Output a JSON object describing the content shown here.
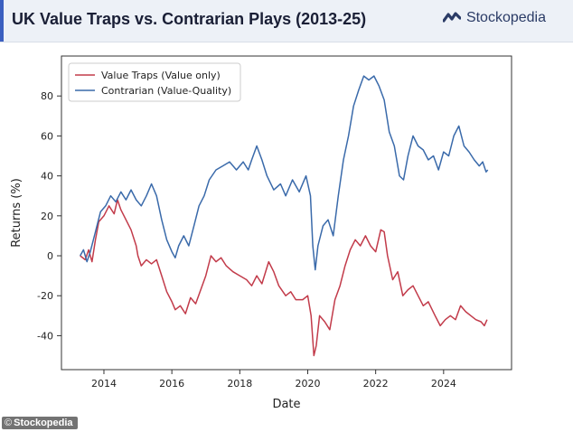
{
  "header": {
    "title": "UK Value Traps vs. Contrarian Plays (2013-25)",
    "brand": "Stockopedia"
  },
  "footer": {
    "credit_symbol": "©",
    "credit": "Stockopedia"
  },
  "colors": {
    "value_traps": "#c23b4a",
    "contrarian": "#3a6aaa",
    "brand": "#2a3b66",
    "header_bg": "#edf1f7"
  },
  "icons": {
    "brand": "stockopedia-logo-icon"
  },
  "chart_data": {
    "type": "line",
    "xlabel": "Date",
    "ylabel": "Returns (%)",
    "xlim": [
      2012.75,
      2026.0
    ],
    "ylim": [
      -57,
      100
    ],
    "x_ticks": [
      2014,
      2016,
      2018,
      2020,
      2022,
      2024
    ],
    "y_ticks": [
      -40,
      -20,
      0,
      20,
      40,
      60,
      80
    ],
    "grid": false,
    "legend_position": "top-left",
    "series": [
      {
        "name": "Value Traps (Value only)",
        "color": "#c23b4a",
        "points": [
          [
            2013.3,
            0
          ],
          [
            2013.45,
            -2
          ],
          [
            2013.55,
            3
          ],
          [
            2013.65,
            -3
          ],
          [
            2013.75,
            8
          ],
          [
            2013.85,
            17
          ],
          [
            2014.0,
            20
          ],
          [
            2014.15,
            25
          ],
          [
            2014.3,
            21
          ],
          [
            2014.4,
            28
          ],
          [
            2014.5,
            23
          ],
          [
            2014.65,
            18
          ],
          [
            2014.8,
            13
          ],
          [
            2014.95,
            5
          ],
          [
            2015.0,
            0
          ],
          [
            2015.1,
            -5
          ],
          [
            2015.25,
            -2
          ],
          [
            2015.4,
            -4
          ],
          [
            2015.55,
            -2
          ],
          [
            2015.7,
            -10
          ],
          [
            2015.85,
            -18
          ],
          [
            2016.0,
            -23
          ],
          [
            2016.1,
            -27
          ],
          [
            2016.25,
            -25
          ],
          [
            2016.4,
            -29
          ],
          [
            2016.55,
            -21
          ],
          [
            2016.7,
            -24
          ],
          [
            2016.85,
            -17
          ],
          [
            2017.0,
            -10
          ],
          [
            2017.15,
            0
          ],
          [
            2017.3,
            -3
          ],
          [
            2017.45,
            -1
          ],
          [
            2017.6,
            -5
          ],
          [
            2017.8,
            -8
          ],
          [
            2018.0,
            -10
          ],
          [
            2018.2,
            -12
          ],
          [
            2018.35,
            -15
          ],
          [
            2018.5,
            -10
          ],
          [
            2018.65,
            -14
          ],
          [
            2018.85,
            -3
          ],
          [
            2019.0,
            -8
          ],
          [
            2019.15,
            -15
          ],
          [
            2019.35,
            -20
          ],
          [
            2019.5,
            -18
          ],
          [
            2019.65,
            -22
          ],
          [
            2019.85,
            -22
          ],
          [
            2020.0,
            -20
          ],
          [
            2020.1,
            -30
          ],
          [
            2020.18,
            -50
          ],
          [
            2020.25,
            -45
          ],
          [
            2020.35,
            -30
          ],
          [
            2020.5,
            -33
          ],
          [
            2020.65,
            -37
          ],
          [
            2020.8,
            -22
          ],
          [
            2020.95,
            -15
          ],
          [
            2021.1,
            -5
          ],
          [
            2021.25,
            3
          ],
          [
            2021.4,
            8
          ],
          [
            2021.55,
            5
          ],
          [
            2021.7,
            10
          ],
          [
            2021.85,
            5
          ],
          [
            2022.0,
            2
          ],
          [
            2022.15,
            13
          ],
          [
            2022.25,
            12
          ],
          [
            2022.35,
            0
          ],
          [
            2022.5,
            -12
          ],
          [
            2022.65,
            -8
          ],
          [
            2022.8,
            -20
          ],
          [
            2022.95,
            -17
          ],
          [
            2023.1,
            -15
          ],
          [
            2023.25,
            -20
          ],
          [
            2023.4,
            -25
          ],
          [
            2023.55,
            -23
          ],
          [
            2023.75,
            -30
          ],
          [
            2023.9,
            -35
          ],
          [
            2024.05,
            -32
          ],
          [
            2024.2,
            -30
          ],
          [
            2024.35,
            -32
          ],
          [
            2024.5,
            -25
          ],
          [
            2024.65,
            -28
          ],
          [
            2024.8,
            -30
          ],
          [
            2024.95,
            -32
          ],
          [
            2025.1,
            -33
          ],
          [
            2025.2,
            -35
          ],
          [
            2025.28,
            -32
          ]
        ]
      },
      {
        "name": "Contrarian (Value-Quality)",
        "color": "#3a6aaa",
        "points": [
          [
            2013.3,
            0
          ],
          [
            2013.4,
            3
          ],
          [
            2013.5,
            -3
          ],
          [
            2013.6,
            2
          ],
          [
            2013.75,
            12
          ],
          [
            2013.9,
            22
          ],
          [
            2014.05,
            25
          ],
          [
            2014.2,
            30
          ],
          [
            2014.35,
            27
          ],
          [
            2014.5,
            32
          ],
          [
            2014.65,
            28
          ],
          [
            2014.8,
            33
          ],
          [
            2014.95,
            28
          ],
          [
            2015.1,
            25
          ],
          [
            2015.25,
            30
          ],
          [
            2015.4,
            36
          ],
          [
            2015.55,
            30
          ],
          [
            2015.7,
            18
          ],
          [
            2015.85,
            8
          ],
          [
            2016.0,
            2
          ],
          [
            2016.1,
            -1
          ],
          [
            2016.2,
            5
          ],
          [
            2016.35,
            10
          ],
          [
            2016.5,
            5
          ],
          [
            2016.65,
            15
          ],
          [
            2016.8,
            25
          ],
          [
            2016.95,
            30
          ],
          [
            2017.1,
            38
          ],
          [
            2017.3,
            43
          ],
          [
            2017.5,
            45
          ],
          [
            2017.7,
            47
          ],
          [
            2017.9,
            43
          ],
          [
            2018.1,
            47
          ],
          [
            2018.25,
            43
          ],
          [
            2018.35,
            48
          ],
          [
            2018.5,
            55
          ],
          [
            2018.65,
            48
          ],
          [
            2018.8,
            40
          ],
          [
            2019.0,
            33
          ],
          [
            2019.2,
            36
          ],
          [
            2019.35,
            30
          ],
          [
            2019.55,
            38
          ],
          [
            2019.75,
            32
          ],
          [
            2019.95,
            40
          ],
          [
            2020.08,
            30
          ],
          [
            2020.15,
            5
          ],
          [
            2020.22,
            -7
          ],
          [
            2020.3,
            5
          ],
          [
            2020.45,
            15
          ],
          [
            2020.6,
            18
          ],
          [
            2020.75,
            10
          ],
          [
            2020.9,
            30
          ],
          [
            2021.05,
            48
          ],
          [
            2021.2,
            60
          ],
          [
            2021.35,
            75
          ],
          [
            2021.5,
            83
          ],
          [
            2021.65,
            90
          ],
          [
            2021.8,
            88
          ],
          [
            2021.95,
            90
          ],
          [
            2022.1,
            85
          ],
          [
            2022.25,
            78
          ],
          [
            2022.4,
            62
          ],
          [
            2022.55,
            55
          ],
          [
            2022.7,
            40
          ],
          [
            2022.82,
            38
          ],
          [
            2022.95,
            50
          ],
          [
            2023.1,
            60
          ],
          [
            2023.25,
            55
          ],
          [
            2023.4,
            53
          ],
          [
            2023.55,
            48
          ],
          [
            2023.7,
            50
          ],
          [
            2023.85,
            43
          ],
          [
            2024.0,
            52
          ],
          [
            2024.15,
            50
          ],
          [
            2024.3,
            60
          ],
          [
            2024.45,
            65
          ],
          [
            2024.6,
            55
          ],
          [
            2024.75,
            52
          ],
          [
            2024.9,
            48
          ],
          [
            2025.05,
            45
          ],
          [
            2025.15,
            47
          ],
          [
            2025.25,
            42
          ],
          [
            2025.3,
            43
          ]
        ]
      }
    ]
  }
}
